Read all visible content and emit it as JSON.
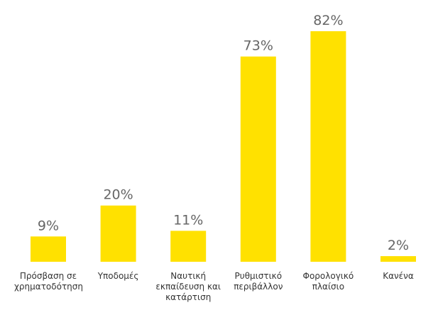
{
  "chart_data": {
    "type": "bar",
    "categories": [
      "Πρόσβαση σε χρηματοδότηση",
      "Υποδομές",
      "Ναυτική εκπαίδευση και κατάρτιση",
      "Ρυθμιστικό περιβάλλον",
      "Φορολογικό πλαίσιο",
      "Κανένα"
    ],
    "values": [
      9,
      20,
      11,
      73,
      82,
      2
    ],
    "value_labels": [
      "9%",
      "20%",
      "11%",
      "73%",
      "82%",
      "2%"
    ],
    "color": "#ffe100"
  }
}
